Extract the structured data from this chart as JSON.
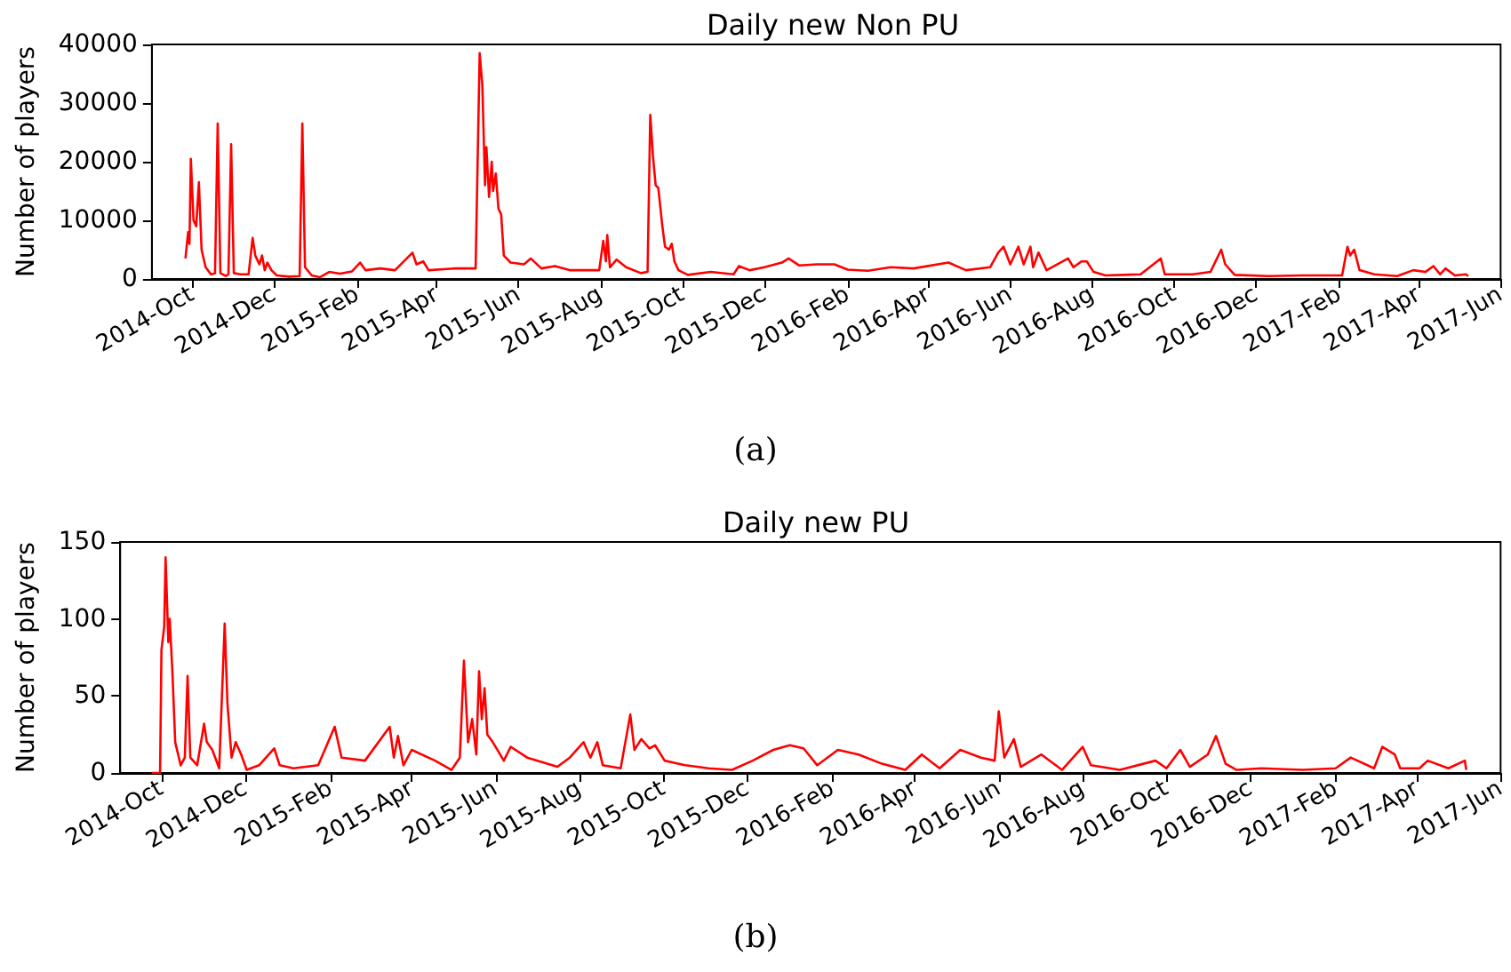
{
  "chart_data": [
    {
      "type": "line",
      "title": "Daily new Non PU",
      "ylabel": "Number of players",
      "annotations": [
        "(a)"
      ],
      "xlim": [
        "2014-09-01",
        "2017-06-01"
      ],
      "ylim": [
        0,
        40000
      ],
      "yticks": [
        0,
        10000,
        20000,
        30000,
        40000
      ],
      "xticks": [
        {
          "value": "2014-10-01",
          "label": "2014-Oct"
        },
        {
          "value": "2014-12-01",
          "label": "2014-Dec"
        },
        {
          "value": "2015-02-01",
          "label": "2015-Feb"
        },
        {
          "value": "2015-04-01",
          "label": "2015-Apr"
        },
        {
          "value": "2015-06-01",
          "label": "2015-Jun"
        },
        {
          "value": "2015-08-01",
          "label": "2015-Aug"
        },
        {
          "value": "2015-10-01",
          "label": "2015-Oct"
        },
        {
          "value": "2015-12-01",
          "label": "2015-Dec"
        },
        {
          "value": "2016-02-01",
          "label": "2016-Feb"
        },
        {
          "value": "2016-04-01",
          "label": "2016-Apr"
        },
        {
          "value": "2016-06-01",
          "label": "2016-Jun"
        },
        {
          "value": "2016-08-01",
          "label": "2016-Aug"
        },
        {
          "value": "2016-10-01",
          "label": "2016-Oct"
        },
        {
          "value": "2016-12-01",
          "label": "2016-Dec"
        },
        {
          "value": "2017-02-01",
          "label": "2017-Feb"
        },
        {
          "value": "2017-04-01",
          "label": "2017-Apr"
        },
        {
          "value": "2017-06-01",
          "label": "2017-Jun"
        }
      ],
      "grid": false,
      "marker": "none",
      "line_style": "solid",
      "series": [
        {
          "color": "#ff0000",
          "x": [
            "2014-09-26",
            "2014-09-28",
            "2014-09-29",
            "2014-09-30",
            "2014-10-02",
            "2014-10-04",
            "2014-10-06",
            "2014-10-08",
            "2014-10-11",
            "2014-10-15",
            "2014-10-18",
            "2014-10-20",
            "2014-10-22",
            "2014-10-26",
            "2014-10-28",
            "2014-10-30",
            "2014-11-01",
            "2014-11-06",
            "2014-11-12",
            "2014-11-15",
            "2014-11-17",
            "2014-11-20",
            "2014-11-22",
            "2014-11-24",
            "2014-11-26",
            "2014-11-29",
            "2014-12-03",
            "2014-12-12",
            "2014-12-20",
            "2014-12-22",
            "2014-12-24",
            "2014-12-29",
            "2015-01-04",
            "2015-01-11",
            "2015-01-19",
            "2015-01-28",
            "2015-02-03",
            "2015-02-07",
            "2015-02-18",
            "2015-03-01",
            "2015-03-14",
            "2015-03-17",
            "2015-03-22",
            "2015-03-26",
            "2015-04-15",
            "2015-04-30",
            "2015-05-03",
            "2015-05-05",
            "2015-05-07",
            "2015-05-08",
            "2015-05-10",
            "2015-05-12",
            "2015-05-13",
            "2015-05-15",
            "2015-05-17",
            "2015-05-19",
            "2015-05-21",
            "2015-05-26",
            "2015-06-05",
            "2015-06-10",
            "2015-06-18",
            "2015-06-28",
            "2015-07-09",
            "2015-07-20",
            "2015-07-31",
            "2015-08-03",
            "2015-08-05",
            "2015-08-06",
            "2015-08-08",
            "2015-08-13",
            "2015-08-20",
            "2015-08-31",
            "2015-09-05",
            "2015-09-07",
            "2015-09-09",
            "2015-09-11",
            "2015-09-13",
            "2015-09-16",
            "2015-09-18",
            "2015-09-21",
            "2015-09-23",
            "2015-09-25",
            "2015-09-28",
            "2015-10-05",
            "2015-10-22",
            "2015-11-08",
            "2015-11-12",
            "2015-11-20",
            "2015-12-01",
            "2015-12-14",
            "2015-12-19",
            "2015-12-27",
            "2016-01-09",
            "2016-01-22",
            "2016-02-01",
            "2016-02-16",
            "2016-03-04",
            "2016-03-21",
            "2016-04-16",
            "2016-04-29",
            "2016-05-17",
            "2016-05-23",
            "2016-05-27",
            "2016-06-01",
            "2016-06-07",
            "2016-06-11",
            "2016-06-16",
            "2016-06-18",
            "2016-06-22",
            "2016-06-28",
            "2016-07-14",
            "2016-07-18",
            "2016-07-24",
            "2016-07-28",
            "2016-08-02",
            "2016-08-11",
            "2016-09-06",
            "2016-09-21",
            "2016-09-24",
            "2016-10-15",
            "2016-10-28",
            "2016-11-05",
            "2016-11-08",
            "2016-11-15",
            "2016-12-10",
            "2017-01-05",
            "2017-02-03",
            "2017-02-07",
            "2017-02-09",
            "2017-02-12",
            "2017-02-16",
            "2017-02-27",
            "2017-03-16",
            "2017-03-28",
            "2017-04-06",
            "2017-04-12",
            "2017-04-17",
            "2017-04-21",
            "2017-04-28",
            "2017-05-06",
            "2017-05-08"
          ],
          "values": [
            3500,
            8000,
            6000,
            20500,
            10000,
            9000,
            16500,
            5000,
            2000,
            800,
            1000,
            26500,
            1000,
            500,
            800,
            23000,
            1000,
            800,
            800,
            7000,
            4000,
            2500,
            4000,
            1500,
            2800,
            1500,
            600,
            400,
            500,
            26500,
            2000,
            600,
            300,
            1200,
            900,
            1300,
            2800,
            1500,
            1800,
            1500,
            4500,
            2500,
            3000,
            1500,
            1800,
            1800,
            38500,
            33000,
            16000,
            22500,
            14000,
            20000,
            15000,
            18000,
            12000,
            11000,
            4000,
            2800,
            2500,
            3500,
            1800,
            2200,
            1500,
            1500,
            1500,
            6500,
            3000,
            7500,
            2000,
            3300,
            2000,
            1000,
            1200,
            28000,
            21000,
            16000,
            15500,
            9000,
            5500,
            5000,
            6000,
            3000,
            1500,
            700,
            1200,
            800,
            2200,
            1500,
            2000,
            2800,
            3500,
            2300,
            2500,
            2500,
            1600,
            1400,
            2000,
            1800,
            2800,
            1500,
            2000,
            4500,
            5500,
            2500,
            5500,
            2500,
            5500,
            2000,
            4500,
            1500,
            3500,
            2000,
            3000,
            3000,
            1200,
            600,
            800,
            3500,
            800,
            800,
            1200,
            5000,
            2500,
            700,
            500,
            600,
            600,
            5500,
            4000,
            5000,
            1500,
            800,
            500,
            1500,
            1200,
            2200,
            800,
            1800,
            600,
            800,
            500
          ]
        }
      ]
    },
    {
      "type": "line",
      "title": "Daily new PU",
      "ylabel": "Number of players",
      "annotations": [
        "(b)"
      ],
      "xlim": [
        "2014-09-01",
        "2017-06-01"
      ],
      "ylim": [
        0,
        150
      ],
      "yticks": [
        0,
        50,
        100,
        150
      ],
      "xticks": [
        {
          "value": "2014-10-01",
          "label": "2014-Oct"
        },
        {
          "value": "2014-12-01",
          "label": "2014-Dec"
        },
        {
          "value": "2015-02-01",
          "label": "2015-Feb"
        },
        {
          "value": "2015-04-01",
          "label": "2015-Apr"
        },
        {
          "value": "2015-06-01",
          "label": "2015-Jun"
        },
        {
          "value": "2015-08-01",
          "label": "2015-Aug"
        },
        {
          "value": "2015-10-01",
          "label": "2015-Oct"
        },
        {
          "value": "2015-12-01",
          "label": "2015-Dec"
        },
        {
          "value": "2016-02-01",
          "label": "2016-Feb"
        },
        {
          "value": "2016-04-01",
          "label": "2016-Apr"
        },
        {
          "value": "2016-06-01",
          "label": "2016-Jun"
        },
        {
          "value": "2016-08-01",
          "label": "2016-Aug"
        },
        {
          "value": "2016-10-01",
          "label": "2016-Oct"
        },
        {
          "value": "2016-12-01",
          "label": "2016-Dec"
        },
        {
          "value": "2017-02-01",
          "label": "2017-Feb"
        },
        {
          "value": "2017-04-01",
          "label": "2017-Apr"
        },
        {
          "value": "2017-06-01",
          "label": "2017-Jun"
        }
      ],
      "grid": false,
      "marker": "none",
      "line_style": "solid",
      "series": [
        {
          "color": "#ff0000",
          "x": [
            "2014-09-24",
            "2014-09-30",
            "2014-10-01",
            "2014-10-03",
            "2014-10-04",
            "2014-10-06",
            "2014-10-07",
            "2014-10-09",
            "2014-10-11",
            "2014-10-15",
            "2014-10-18",
            "2014-10-20",
            "2014-10-22",
            "2014-10-27",
            "2014-11-01",
            "2014-11-03",
            "2014-11-07",
            "2014-11-12",
            "2014-11-16",
            "2014-11-18",
            "2014-11-21",
            "2014-11-24",
            "2014-11-28",
            "2014-12-02",
            "2014-12-11",
            "2014-12-22",
            "2014-12-26",
            "2015-01-05",
            "2015-01-23",
            "2015-02-04",
            "2015-02-09",
            "2015-02-26",
            "2015-03-16",
            "2015-03-19",
            "2015-03-22",
            "2015-03-26",
            "2015-04-01",
            "2015-04-18",
            "2015-04-30",
            "2015-05-06",
            "2015-05-09",
            "2015-05-12",
            "2015-05-15",
            "2015-05-18",
            "2015-05-20",
            "2015-05-22",
            "2015-05-24",
            "2015-05-26",
            "2015-05-30",
            "2015-06-07",
            "2015-06-12",
            "2015-06-24",
            "2015-07-16",
            "2015-07-25",
            "2015-08-04",
            "2015-08-09",
            "2015-08-14",
            "2015-08-18",
            "2015-08-31",
            "2015-09-07",
            "2015-09-10",
            "2015-09-15",
            "2015-09-21",
            "2015-09-25",
            "2015-10-02",
            "2015-10-17",
            "2015-11-03",
            "2015-11-20",
            "2015-12-05",
            "2015-12-20",
            "2016-01-01",
            "2016-01-11",
            "2016-01-21",
            "2016-02-05",
            "2016-02-20",
            "2016-03-08",
            "2016-03-25",
            "2016-04-06",
            "2016-04-19",
            "2016-05-04",
            "2016-05-19",
            "2016-05-29",
            "2016-06-01",
            "2016-06-05",
            "2016-06-12",
            "2016-06-17",
            "2016-07-02",
            "2016-07-17",
            "2016-08-01",
            "2016-08-07",
            "2016-08-28",
            "2016-09-23",
            "2016-10-01",
            "2016-10-11",
            "2016-10-18",
            "2016-10-31",
            "2016-11-06",
            "2016-11-13",
            "2016-11-21",
            "2016-12-09",
            "2017-01-08",
            "2017-02-01",
            "2017-02-12",
            "2017-03-01",
            "2017-03-07",
            "2017-03-16",
            "2017-03-20",
            "2017-04-03",
            "2017-04-09",
            "2017-04-24",
            "2017-05-06",
            "2017-05-07"
          ],
          "values": [
            0,
            0,
            80,
            95,
            140,
            85,
            100,
            65,
            20,
            5,
            10,
            63,
            10,
            5,
            32,
            20,
            15,
            3,
            97,
            45,
            10,
            20,
            12,
            2,
            5,
            16,
            5,
            3,
            5,
            30,
            10,
            8,
            30,
            10,
            24,
            5,
            15,
            8,
            2,
            10,
            73,
            20,
            35,
            12,
            66,
            35,
            55,
            25,
            20,
            8,
            17,
            10,
            4,
            10,
            20,
            10,
            20,
            5,
            3,
            38,
            15,
            22,
            16,
            18,
            8,
            5,
            3,
            2,
            8,
            15,
            18,
            16,
            5,
            15,
            12,
            6,
            2,
            12,
            3,
            15,
            10,
            8,
            40,
            10,
            22,
            4,
            12,
            2,
            17,
            5,
            2,
            8,
            3,
            15,
            4,
            12,
            24,
            6,
            2,
            3,
            2,
            3,
            10,
            3,
            17,
            12,
            3,
            3,
            8,
            3,
            8,
            2
          ]
        }
      ]
    }
  ]
}
